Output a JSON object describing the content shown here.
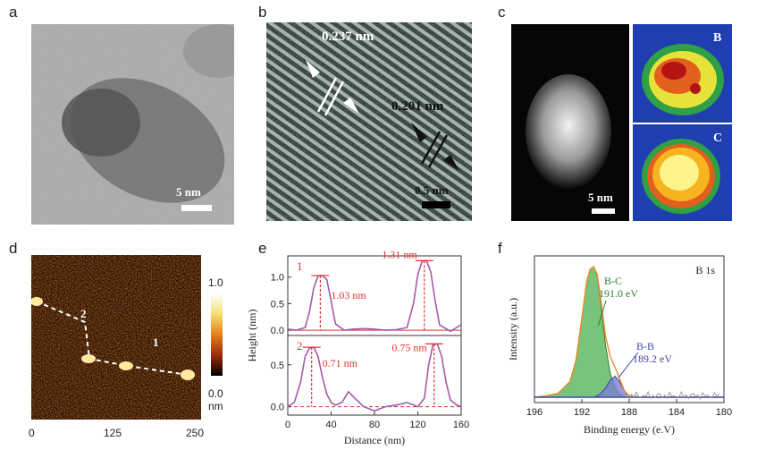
{
  "panel_labels": {
    "a": "a",
    "b": "b",
    "c": "c",
    "d": "d",
    "e": "e",
    "f": "f"
  },
  "panel_a": {
    "scalebar": "5 nm"
  },
  "panel_b": {
    "lattice_1": "0.237 nm",
    "lattice_2": "0.201 nm",
    "scalebar": "0.5 nm"
  },
  "panel_c": {
    "map_b": "B",
    "map_c": "C",
    "scalebar": "5 nm"
  },
  "panel_d": {
    "colorbar_max": "1.0",
    "colorbar_min": "0.0",
    "colorbar_unit": "nm",
    "path_1": "1",
    "path_2": "2",
    "xticks": [
      "0",
      "125",
      "250"
    ]
  },
  "chart_data": [
    {
      "type": "line",
      "panel": "e",
      "xlabel": "Distance (nm)",
      "ylabel": "Height (nm)",
      "xlim": [
        0,
        160
      ],
      "xticks": [
        "0",
        "40",
        "80",
        "120",
        "160"
      ],
      "subplots": [
        {
          "label": "1",
          "ylim": [
            -0.1,
            1.4
          ],
          "yticks": [
            "0.0",
            "0.5",
            "1.0"
          ],
          "annotations": [
            "1.03 nm",
            "1.31 nm"
          ],
          "peaks": [
            {
              "x": 30,
              "y": 1.03
            },
            {
              "x": 126,
              "y": 1.31
            }
          ],
          "x": [
            0,
            8,
            16,
            20,
            24,
            28,
            32,
            36,
            40,
            44,
            52,
            60,
            70,
            80,
            90,
            100,
            110,
            116,
            120,
            124,
            128,
            132,
            136,
            140,
            150,
            160
          ],
          "y": [
            0.02,
            0.0,
            0.05,
            0.35,
            0.8,
            1.02,
            1.03,
            0.95,
            0.55,
            0.12,
            0.0,
            0.02,
            0.03,
            0.02,
            0.0,
            0.01,
            0.05,
            0.5,
            1.05,
            1.3,
            1.31,
            1.1,
            0.55,
            0.1,
            -0.02,
            0.1
          ]
        },
        {
          "label": "2",
          "ylim": [
            -0.1,
            0.85
          ],
          "yticks": [
            "0.0",
            "0.5"
          ],
          "annotations": [
            "0.71 nm",
            "0.75 nm"
          ],
          "peaks": [
            {
              "x": 22,
              "y": 0.71
            },
            {
              "x": 135,
              "y": 0.75
            }
          ],
          "x": [
            0,
            6,
            12,
            16,
            20,
            24,
            28,
            32,
            36,
            40,
            44,
            50,
            56,
            62,
            70,
            80,
            90,
            100,
            110,
            120,
            126,
            130,
            134,
            138,
            142,
            146,
            150,
            156,
            160
          ],
          "y": [
            0.0,
            0.05,
            0.3,
            0.6,
            0.7,
            0.71,
            0.6,
            0.35,
            0.15,
            0.05,
            0.02,
            0.05,
            0.18,
            0.1,
            0.0,
            -0.05,
            0.0,
            0.02,
            0.05,
            0.0,
            0.1,
            0.5,
            0.74,
            0.75,
            0.6,
            0.3,
            0.08,
            0.02,
            0.0
          ]
        }
      ]
    },
    {
      "type": "line",
      "panel": "f",
      "title": "B 1s",
      "xlabel": "Binding energy (e.V)",
      "ylabel": "Intensity (a.u.)",
      "xlim": [
        196,
        180
      ],
      "xticks": [
        "196",
        "192",
        "188",
        "184",
        "180"
      ],
      "series": [
        {
          "name": "B-C",
          "value": "191.0 eV",
          "center": 191.0
        },
        {
          "name": "B-B",
          "value": "189.2 eV",
          "center": 189.2
        }
      ],
      "x": [
        196,
        195,
        194,
        193,
        192.5,
        192,
        191.6,
        191.3,
        191.0,
        190.7,
        190.4,
        190.0,
        189.6,
        189.2,
        188.8,
        188.4,
        188.0,
        187,
        186,
        185,
        184,
        183,
        182,
        181,
        180
      ],
      "bc": [
        0.0,
        0.01,
        0.03,
        0.12,
        0.28,
        0.6,
        0.88,
        0.98,
        1.0,
        0.93,
        0.72,
        0.4,
        0.18,
        0.07,
        0.02,
        0.0,
        0.0,
        0,
        0,
        0,
        0,
        0,
        0,
        0,
        0
      ],
      "bb": [
        0,
        0,
        0,
        0,
        0,
        0,
        0,
        0,
        0,
        0.01,
        0.03,
        0.07,
        0.13,
        0.16,
        0.12,
        0.05,
        0.01,
        0,
        0,
        0,
        0,
        0,
        0,
        0,
        0
      ]
    }
  ]
}
